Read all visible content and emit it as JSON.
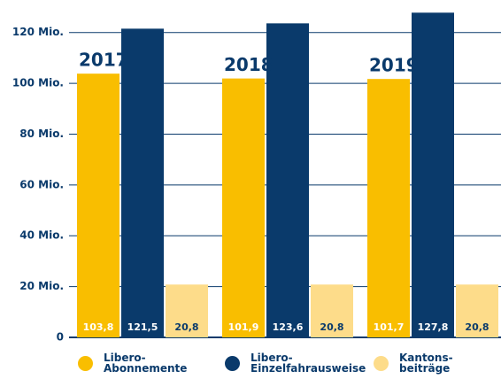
{
  "chart_data": {
    "type": "bar",
    "categories": [
      "2017",
      "2018",
      "2019"
    ],
    "series": [
      {
        "name": "Libero-Abonnemente",
        "color": "#f9be00",
        "values": [
          103.8,
          101.9,
          101.7
        ],
        "value_labels": [
          "103,8",
          "101,9",
          "101,7"
        ]
      },
      {
        "name": "Libero-Einzelfahrausweise",
        "color": "#0a3a6b",
        "values": [
          121.5,
          123.6,
          127.8
        ],
        "value_labels": [
          "121,5",
          "123,6",
          "127,8"
        ]
      },
      {
        "name": "Kantons­beiträge",
        "color": "#fddc8a",
        "values": [
          20.8,
          20.8,
          20.8
        ],
        "value_labels": [
          "20,8",
          "20,8",
          "20,8"
        ]
      }
    ],
    "ylim": [
      0,
      130
    ],
    "yticks": [
      0,
      {
        "value": 20,
        "label": "20 Mio."
      },
      {
        "value": 40,
        "label": "40 Mio."
      },
      {
        "value": 60,
        "label": "60 Mio."
      },
      {
        "value": 80,
        "label": "80 Mio."
      },
      {
        "value": 100,
        "label": "100 Mio."
      },
      {
        "value": 120,
        "label": "120 Mio."
      }
    ],
    "grid": true
  }
}
